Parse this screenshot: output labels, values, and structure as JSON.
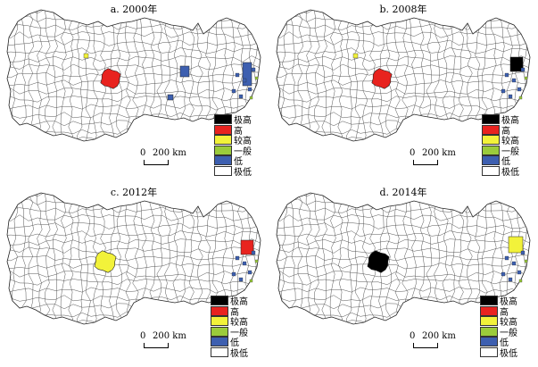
{
  "panels": [
    {
      "title": "a. 2000年",
      "scale_zero": "0",
      "scale_label": "200 km",
      "core_level": "高",
      "second_level": "低"
    },
    {
      "title": "b. 2008年",
      "scale_zero": "0",
      "scale_label": "200 km",
      "core_level": "高",
      "second_level": "极高"
    },
    {
      "title": "c. 2012年",
      "scale_zero": "0",
      "scale_label": "200 km",
      "core_level": "较高",
      "second_level": "高"
    },
    {
      "title": "d. 2014年",
      "scale_zero": "0",
      "scale_label": "200 km",
      "core_level": "极高",
      "second_level": "较高"
    }
  ],
  "legend": [
    {
      "label": "极高",
      "color": "#000000"
    },
    {
      "label": "高",
      "color": "#e8231f"
    },
    {
      "label": "较高",
      "color": "#f2f23a"
    },
    {
      "label": "一般",
      "color": "#9bcb3b"
    },
    {
      "label": "低",
      "color": "#3d5fb0"
    },
    {
      "label": "极低",
      "color": "#ffffff"
    }
  ]
}
